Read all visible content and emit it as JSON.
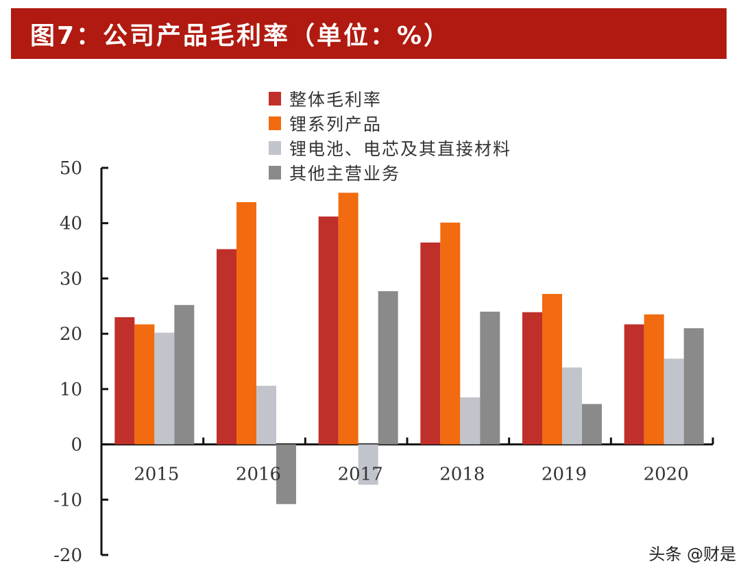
{
  "title": "图7：公司产品毛利率（单位：%）",
  "watermark": "头条 @财是",
  "chart_data": {
    "type": "bar",
    "categories": [
      "2015",
      "2016",
      "2017",
      "2018",
      "2019",
      "2020"
    ],
    "series": [
      {
        "name": "整体毛利率",
        "color": "#c0302a",
        "values": [
          23.0,
          35.3,
          41.2,
          36.5,
          23.9,
          21.7
        ]
      },
      {
        "name": "锂系列产品",
        "color": "#f26b10",
        "values": [
          21.7,
          43.8,
          45.5,
          40.1,
          27.2,
          23.5
        ]
      },
      {
        "name": "锂电池、电芯及其直接材料",
        "color": "#c2c4cc",
        "values": [
          20.2,
          10.6,
          -7.3,
          8.5,
          13.9,
          15.5
        ]
      },
      {
        "name": "其他主营业务",
        "color": "#8a8a8a",
        "values": [
          25.2,
          -10.8,
          27.7,
          24.0,
          7.3,
          21.0
        ]
      }
    ],
    "yticks": [
      "50",
      "40",
      "30",
      "20",
      "10",
      "0",
      "-10",
      "-20"
    ],
    "ylim": [
      -20,
      50
    ],
    "xlabel": "",
    "ylabel": "",
    "legend_position": "top"
  }
}
